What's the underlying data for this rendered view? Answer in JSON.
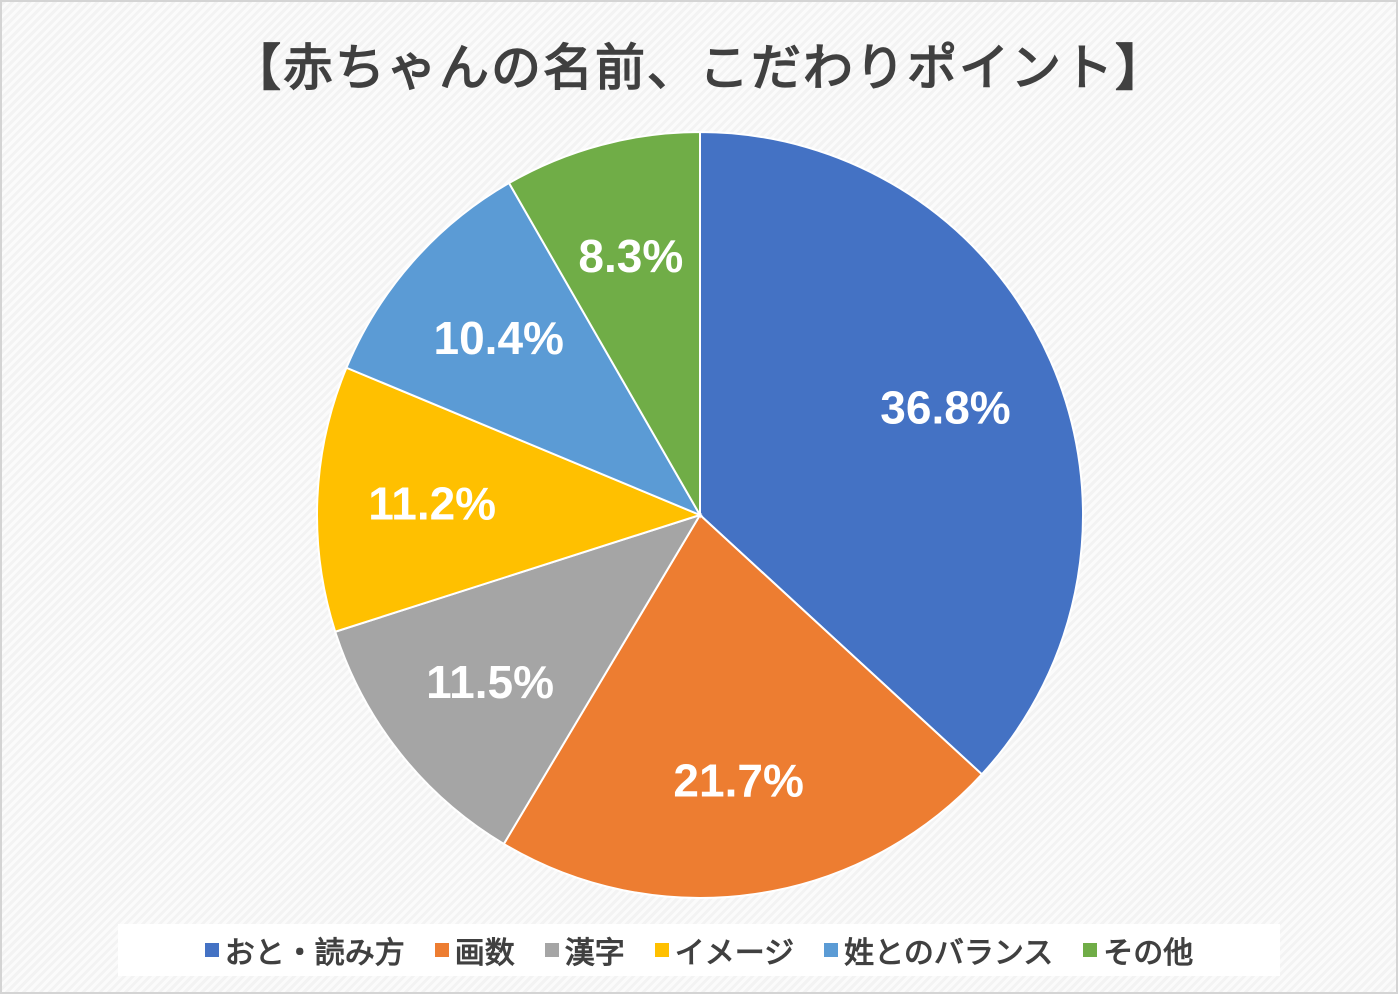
{
  "chart_data": {
    "type": "pie",
    "title": "【赤ちゃんの名前、こだわりポイント】",
    "categories": [
      "おと・読み方",
      "画数",
      "漢字",
      "イメージ",
      "姓とのバランス",
      "その他"
    ],
    "values": [
      36.8,
      21.7,
      11.5,
      11.2,
      10.4,
      8.3
    ],
    "labels": [
      "36.8%",
      "21.7%",
      "11.5%",
      "11.2%",
      "10.4%",
      "8.3%"
    ],
    "colors": [
      "#4472c4",
      "#ed7d31",
      "#a5a5a5",
      "#ffc000",
      "#5b9bd5",
      "#70ad47"
    ],
    "start": "top",
    "direction": "clockwise",
    "legend": "bottom"
  }
}
